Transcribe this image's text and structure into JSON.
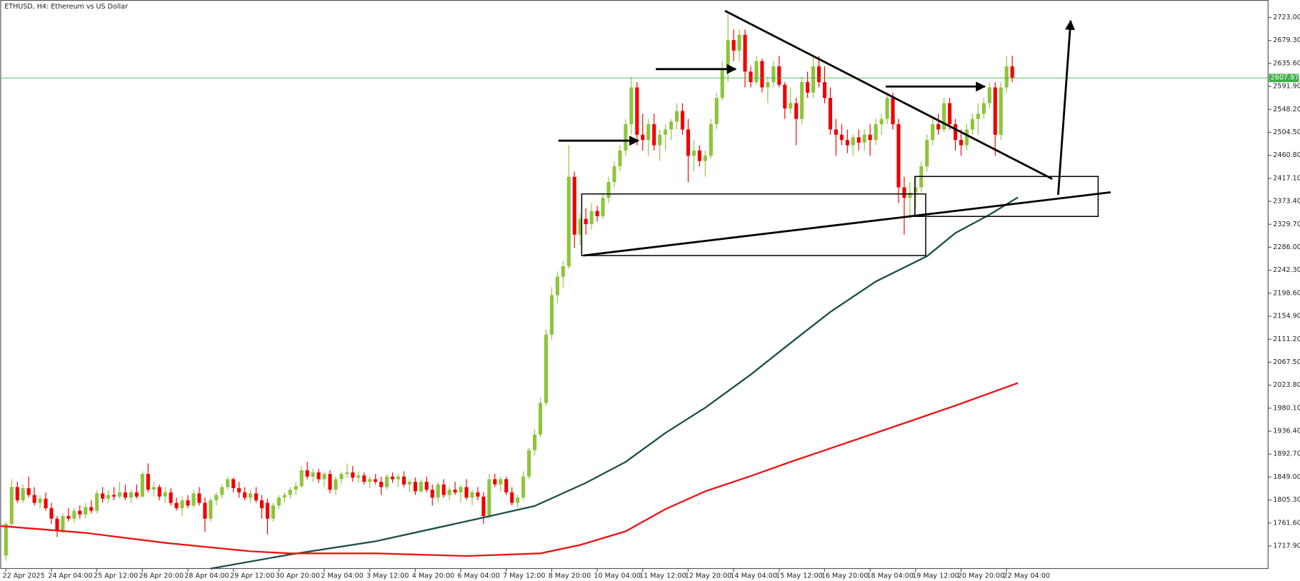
{
  "chart_data": {
    "type": "candlestick",
    "title": "ETHUSD, H4:  Ethereum vs US Dollar",
    "up_color": "#8fc43c",
    "down_color": "#f00000",
    "ohlc": [
      [
        1700,
        1765,
        1690,
        1760
      ],
      [
        1760,
        1845,
        1755,
        1830
      ],
      [
        1830,
        1840,
        1800,
        1805
      ],
      [
        1805,
        1835,
        1800,
        1828
      ],
      [
        1828,
        1850,
        1810,
        1815
      ],
      [
        1815,
        1830,
        1795,
        1800
      ],
      [
        1800,
        1815,
        1790,
        1808
      ],
      [
        1808,
        1820,
        1785,
        1790
      ],
      [
        1790,
        1800,
        1760,
        1770
      ],
      [
        1770,
        1775,
        1735,
        1748
      ],
      [
        1748,
        1780,
        1742,
        1775
      ],
      [
        1775,
        1790,
        1765,
        1770
      ],
      [
        1770,
        1790,
        1762,
        1785
      ],
      [
        1785,
        1795,
        1770,
        1778
      ],
      [
        1778,
        1800,
        1770,
        1792
      ],
      [
        1792,
        1805,
        1780,
        1785
      ],
      [
        1785,
        1825,
        1780,
        1818
      ],
      [
        1818,
        1830,
        1800,
        1808
      ],
      [
        1808,
        1825,
        1800,
        1815
      ],
      [
        1815,
        1830,
        1805,
        1812
      ],
      [
        1812,
        1840,
        1808,
        1820
      ],
      [
        1820,
        1835,
        1805,
        1810
      ],
      [
        1810,
        1825,
        1800,
        1820
      ],
      [
        1820,
        1835,
        1808,
        1812
      ],
      [
        1812,
        1860,
        1810,
        1855
      ],
      [
        1855,
        1875,
        1820,
        1825
      ],
      [
        1825,
        1840,
        1812,
        1830
      ],
      [
        1830,
        1835,
        1805,
        1812
      ],
      [
        1812,
        1830,
        1800,
        1820
      ],
      [
        1820,
        1828,
        1795,
        1800
      ],
      [
        1800,
        1810,
        1785,
        1790
      ],
      [
        1790,
        1812,
        1775,
        1805
      ],
      [
        1805,
        1815,
        1790,
        1795
      ],
      [
        1795,
        1825,
        1790,
        1818
      ],
      [
        1818,
        1830,
        1795,
        1800
      ],
      [
        1800,
        1810,
        1745,
        1770
      ],
      [
        1770,
        1810,
        1765,
        1805
      ],
      [
        1805,
        1820,
        1795,
        1815
      ],
      [
        1815,
        1835,
        1808,
        1830
      ],
      [
        1830,
        1850,
        1825,
        1845
      ],
      [
        1845,
        1848,
        1820,
        1828
      ],
      [
        1828,
        1840,
        1810,
        1820
      ],
      [
        1820,
        1830,
        1805,
        1810
      ],
      [
        1810,
        1825,
        1800,
        1818
      ],
      [
        1818,
        1830,
        1800,
        1805
      ],
      [
        1805,
        1815,
        1770,
        1790
      ],
      [
        1800,
        1808,
        1740,
        1770
      ],
      [
        1770,
        1800,
        1765,
        1795
      ],
      [
        1795,
        1815,
        1788,
        1810
      ],
      [
        1810,
        1820,
        1800,
        1815
      ],
      [
        1815,
        1830,
        1808,
        1825
      ],
      [
        1825,
        1840,
        1815,
        1832
      ],
      [
        1832,
        1870,
        1828,
        1862
      ],
      [
        1862,
        1878,
        1845,
        1850
      ],
      [
        1850,
        1865,
        1840,
        1858
      ],
      [
        1858,
        1865,
        1838,
        1845
      ],
      [
        1845,
        1860,
        1830,
        1855
      ],
      [
        1855,
        1862,
        1818,
        1825
      ],
      [
        1825,
        1850,
        1815,
        1845
      ],
      [
        1845,
        1860,
        1835,
        1855
      ],
      [
        1855,
        1875,
        1848,
        1858
      ],
      [
        1858,
        1870,
        1840,
        1848
      ],
      [
        1848,
        1860,
        1838,
        1852
      ],
      [
        1852,
        1858,
        1835,
        1840
      ],
      [
        1840,
        1850,
        1828,
        1845
      ],
      [
        1845,
        1855,
        1835,
        1840
      ],
      [
        1840,
        1850,
        1815,
        1830
      ],
      [
        1830,
        1855,
        1825,
        1850
      ],
      [
        1850,
        1858,
        1838,
        1845
      ],
      [
        1845,
        1855,
        1830,
        1850
      ],
      [
        1850,
        1860,
        1830,
        1835
      ],
      [
        1835,
        1845,
        1820,
        1840
      ],
      [
        1840,
        1848,
        1815,
        1822
      ],
      [
        1822,
        1845,
        1818,
        1840
      ],
      [
        1840,
        1850,
        1820,
        1825
      ],
      [
        1825,
        1835,
        1795,
        1810
      ],
      [
        1810,
        1840,
        1800,
        1835
      ],
      [
        1835,
        1845,
        1810,
        1815
      ],
      [
        1815,
        1830,
        1805,
        1825
      ],
      [
        1825,
        1840,
        1815,
        1820
      ],
      [
        1820,
        1835,
        1800,
        1830
      ],
      [
        1830,
        1845,
        1805,
        1810
      ],
      [
        1810,
        1825,
        1795,
        1820
      ],
      [
        1820,
        1830,
        1805,
        1812
      ],
      [
        1812,
        1820,
        1760,
        1775
      ],
      [
        1775,
        1855,
        1770,
        1845
      ],
      [
        1845,
        1855,
        1830,
        1835
      ],
      [
        1835,
        1850,
        1820,
        1845
      ],
      [
        1845,
        1850,
        1815,
        1820
      ],
      [
        1820,
        1830,
        1795,
        1800
      ],
      [
        1800,
        1815,
        1790,
        1810
      ],
      [
        1810,
        1860,
        1805,
        1850
      ],
      [
        1850,
        1905,
        1845,
        1900
      ],
      [
        1900,
        1940,
        1890,
        1930
      ],
      [
        1930,
        2000,
        1925,
        1990
      ],
      [
        1990,
        2130,
        1985,
        2120
      ],
      [
        2120,
        2210,
        2110,
        2195
      ],
      [
        2195,
        2240,
        2180,
        2230
      ],
      [
        2230,
        2260,
        2210,
        2250
      ],
      [
        2250,
        2480,
        2245,
        2420
      ],
      [
        2420,
        2430,
        2285,
        2310
      ],
      [
        2310,
        2350,
        2290,
        2340
      ],
      [
        2340,
        2360,
        2310,
        2330
      ],
      [
        2330,
        2370,
        2320,
        2355
      ],
      [
        2355,
        2365,
        2335,
        2345
      ],
      [
        2345,
        2390,
        2340,
        2380
      ],
      [
        2380,
        2420,
        2370,
        2410
      ],
      [
        2410,
        2450,
        2400,
        2440
      ],
      [
        2440,
        2480,
        2430,
        2470
      ],
      [
        2470,
        2530,
        2460,
        2520
      ],
      [
        2520,
        2610,
        2500,
        2590
      ],
      [
        2590,
        2600,
        2480,
        2500
      ],
      [
        2500,
        2540,
        2470,
        2490
      ],
      [
        2490,
        2530,
        2460,
        2520
      ],
      [
        2520,
        2540,
        2470,
        2480
      ],
      [
        2480,
        2510,
        2450,
        2500
      ],
      [
        2500,
        2520,
        2470,
        2510
      ],
      [
        2510,
        2530,
        2490,
        2525
      ],
      [
        2525,
        2560,
        2510,
        2545
      ],
      [
        2545,
        2560,
        2500,
        2510
      ],
      [
        2510,
        2530,
        2410,
        2460
      ],
      [
        2460,
        2490,
        2430,
        2470
      ],
      [
        2470,
        2480,
        2440,
        2450
      ],
      [
        2450,
        2470,
        2420,
        2460
      ],
      [
        2460,
        2530,
        2455,
        2520
      ],
      [
        2520,
        2580,
        2510,
        2570
      ],
      [
        2570,
        2640,
        2565,
        2625
      ],
      [
        2625,
        2730,
        2600,
        2680
      ],
      [
        2680,
        2700,
        2640,
        2660
      ],
      [
        2660,
        2700,
        2640,
        2690
      ],
      [
        2690,
        2700,
        2590,
        2620
      ],
      [
        2620,
        2630,
        2590,
        2600
      ],
      [
        2600,
        2650,
        2595,
        2640
      ],
      [
        2640,
        2645,
        2580,
        2590
      ],
      [
        2590,
        2610,
        2560,
        2600
      ],
      [
        2600,
        2640,
        2590,
        2630
      ],
      [
        2630,
        2650,
        2590,
        2595
      ],
      [
        2595,
        2600,
        2530,
        2550
      ],
      [
        2550,
        2590,
        2540,
        2560
      ],
      [
        2560,
        2570,
        2480,
        2530
      ],
      [
        2530,
        2610,
        2520,
        2600
      ],
      [
        2600,
        2620,
        2570,
        2580
      ],
      [
        2580,
        2650,
        2570,
        2630
      ],
      [
        2630,
        2650,
        2590,
        2600
      ],
      [
        2600,
        2630,
        2560,
        2570
      ],
      [
        2570,
        2590,
        2500,
        2510
      ],
      [
        2510,
        2530,
        2460,
        2500
      ],
      [
        2500,
        2520,
        2480,
        2490
      ],
      [
        2490,
        2510,
        2465,
        2480
      ],
      [
        2480,
        2500,
        2460,
        2495
      ],
      [
        2495,
        2510,
        2470,
        2485
      ],
      [
        2485,
        2510,
        2470,
        2500
      ],
      [
        2500,
        2520,
        2460,
        2490
      ],
      [
        2490,
        2530,
        2480,
        2520
      ],
      [
        2520,
        2540,
        2500,
        2530
      ],
      [
        2530,
        2580,
        2520,
        2570
      ],
      [
        2570,
        2580,
        2510,
        2520
      ],
      [
        2520,
        2530,
        2370,
        2400
      ],
      [
        2400,
        2420,
        2310,
        2380
      ],
      [
        2380,
        2410,
        2340,
        2390
      ],
      [
        2390,
        2420,
        2360,
        2400
      ],
      [
        2400,
        2450,
        2390,
        2440
      ],
      [
        2440,
        2500,
        2430,
        2490
      ],
      [
        2490,
        2530,
        2480,
        2520
      ],
      [
        2520,
        2540,
        2500,
        2510
      ],
      [
        2510,
        2570,
        2505,
        2560
      ],
      [
        2560,
        2570,
        2510,
        2520
      ],
      [
        2520,
        2530,
        2470,
        2490
      ],
      [
        2490,
        2510,
        2460,
        2480
      ],
      [
        2480,
        2520,
        2470,
        2510
      ],
      [
        2510,
        2540,
        2500,
        2530
      ],
      [
        2530,
        2560,
        2500,
        2540
      ],
      [
        2540,
        2570,
        2530,
        2560
      ],
      [
        2560,
        2600,
        2550,
        2590
      ],
      [
        2590,
        2600,
        2460,
        2500
      ],
      [
        2500,
        2600,
        2490,
        2590
      ],
      [
        2590,
        2650,
        2580,
        2630
      ],
      [
        2630,
        2650,
        2600,
        2608
      ]
    ],
    "lines": [
      {
        "color": "#1d4f4c",
        "x": [
          36,
          50,
          65,
          84,
          93,
          102,
          109,
          116,
          123,
          131,
          138,
          145,
          153,
          162,
          167,
          173,
          178
        ],
        "values": [
          1675,
          1702,
          1727,
          1772,
          1794,
          1838,
          1878,
          1933,
          1981,
          2044,
          2104,
          2163,
          2221,
          2269,
          2313,
          2348,
          2381
        ]
      },
      {
        "color": "#ee1111",
        "x": [
          -1,
          14,
          28,
          43,
          50,
          65,
          81,
          94,
          101,
          109,
          116,
          123,
          131,
          138,
          153,
          167,
          178
        ],
        "values": [
          1756,
          1743,
          1724,
          1708,
          1704,
          1704,
          1699,
          1704,
          1720,
          1746,
          1788,
          1822,
          1851,
          1878,
          1933,
          1985,
          2028
        ]
      }
    ],
    "last_price": 2607.97,
    "last_price_color": "#3cb043",
    "xlim": [
      -1,
      222
    ],
    "ylim": [
      1675.2,
      2756.2
    ],
    "yticks": [
      {
        "value": 2723,
        "label": "2723.00"
      },
      {
        "value": 2679.3,
        "label": "2679.30"
      },
      {
        "value": 2635.6,
        "label": "2635.60"
      },
      {
        "value": 2591.9,
        "label": "2591.90"
      },
      {
        "value": 2548.2,
        "label": "2548.20"
      },
      {
        "value": 2504.5,
        "label": "2504.50"
      },
      {
        "value": 2460.8,
        "label": "2460.80"
      },
      {
        "value": 2417.1,
        "label": "2417.10"
      },
      {
        "value": 2373.4,
        "label": "2373.40"
      },
      {
        "value": 2329.7,
        "label": "2329.70"
      },
      {
        "value": 2286,
        "label": "2286.00"
      },
      {
        "value": 2242.3,
        "label": "2242.30"
      },
      {
        "value": 2198.6,
        "label": "2198.60"
      },
      {
        "value": 2154.9,
        "label": "2154.90"
      },
      {
        "value": 2111.2,
        "label": "2111.20"
      },
      {
        "value": 2067.5,
        "label": "2067.50"
      },
      {
        "value": 2023.8,
        "label": "2023.80"
      },
      {
        "value": 1980.1,
        "label": "1980.10"
      },
      {
        "value": 1936.4,
        "label": "1936.40"
      },
      {
        "value": 1892.7,
        "label": "1892.70"
      },
      {
        "value": 1849,
        "label": "1849.00"
      },
      {
        "value": 1805.3,
        "label": "1805.30"
      },
      {
        "value": 1761.6,
        "label": "1761.60"
      },
      {
        "value": 1717.9,
        "label": "1717.90"
      }
    ],
    "xticks": [
      {
        "value": 0,
        "label": "22 Apr 2025"
      },
      {
        "value": 8,
        "label": "24 Apr 04:00"
      },
      {
        "value": 16,
        "label": "25 Apr 12:00"
      },
      {
        "value": 24,
        "label": "26 Apr 20:00"
      },
      {
        "value": 32,
        "label": "28 Apr 04:00"
      },
      {
        "value": 40,
        "label": "29 Apr 12:00"
      },
      {
        "value": 48,
        "label": "30 Apr 20:00"
      },
      {
        "value": 56,
        "label": "2 May 04:00"
      },
      {
        "value": 64,
        "label": "3 May 12:00"
      },
      {
        "value": 72,
        "label": "4 May 20:00"
      },
      {
        "value": 80,
        "label": "6 May 04:00"
      },
      {
        "value": 88,
        "label": "7 May 12:00"
      },
      {
        "value": 96,
        "label": "8 May 20:00"
      },
      {
        "value": 104,
        "label": "10 May 04:00"
      },
      {
        "value": 112,
        "label": "11 May 12:00"
      },
      {
        "value": 120,
        "label": "12 May 20:00"
      },
      {
        "value": 128,
        "label": "14 May 04:00"
      },
      {
        "value": 136,
        "label": "15 May 12:00"
      },
      {
        "value": 144,
        "label": "16 May 20:00"
      },
      {
        "value": 152,
        "label": "18 May 04:00"
      },
      {
        "value": 160,
        "label": "19 May 12:00"
      },
      {
        "value": 168,
        "label": "20 May 20:00"
      },
      {
        "value": 176,
        "label": "22 May 04:00"
      }
    ]
  }
}
